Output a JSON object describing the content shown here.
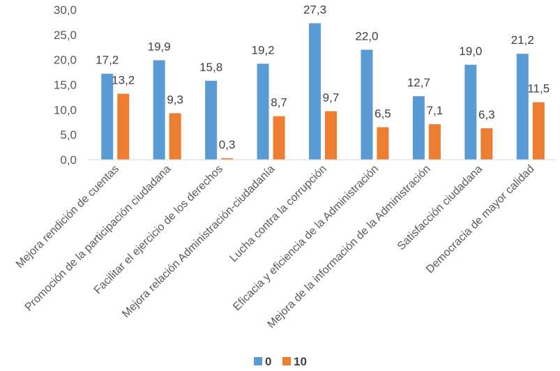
{
  "chart_data": {
    "type": "bar",
    "categories": [
      "Mejora rendición de cuentas",
      "Promoción de la participación ciudadana",
      "Facilitar el ejercicio de los derechos",
      "Mejora relación Administración-ciudadanía",
      "Lucha contra la corrupción",
      "Eficacia y eficiencia de la Administración",
      "Mejora de la información de la Administración",
      "Satisfacción ciudadana",
      "Democracia de mayor calidad"
    ],
    "series": [
      {
        "name": "0",
        "color": "#5B9BD5",
        "values": [
          17.2,
          19.9,
          15.8,
          19.2,
          27.3,
          22.0,
          12.7,
          19.0,
          21.2
        ],
        "labels": [
          "17,2",
          "19,9",
          "15,8",
          "19,2",
          "27,3",
          "22,0",
          "12,7",
          "19,0",
          "21,2"
        ]
      },
      {
        "name": "10",
        "color": "#ED7D31",
        "values": [
          13.2,
          9.3,
          0.3,
          8.7,
          9.7,
          6.5,
          7.1,
          6.3,
          11.5
        ],
        "labels": [
          "13,2",
          "9,3",
          "0,3",
          "8,7",
          "9,7",
          "6,5",
          "7,1",
          "6,3",
          "11,5"
        ]
      }
    ],
    "ylim": [
      0,
      30
    ],
    "yticks": [
      {
        "value": 0,
        "label": "0,0"
      },
      {
        "value": 5,
        "label": "5,0"
      },
      {
        "value": 10,
        "label": "10,0"
      },
      {
        "value": 15,
        "label": "15,0"
      },
      {
        "value": 20,
        "label": "20,0"
      },
      {
        "value": 25,
        "label": "25,0"
      },
      {
        "value": 30,
        "label": "30,0"
      }
    ],
    "grid": false,
    "legend": "bottom",
    "title": "",
    "xlabel": "",
    "ylabel": ""
  }
}
